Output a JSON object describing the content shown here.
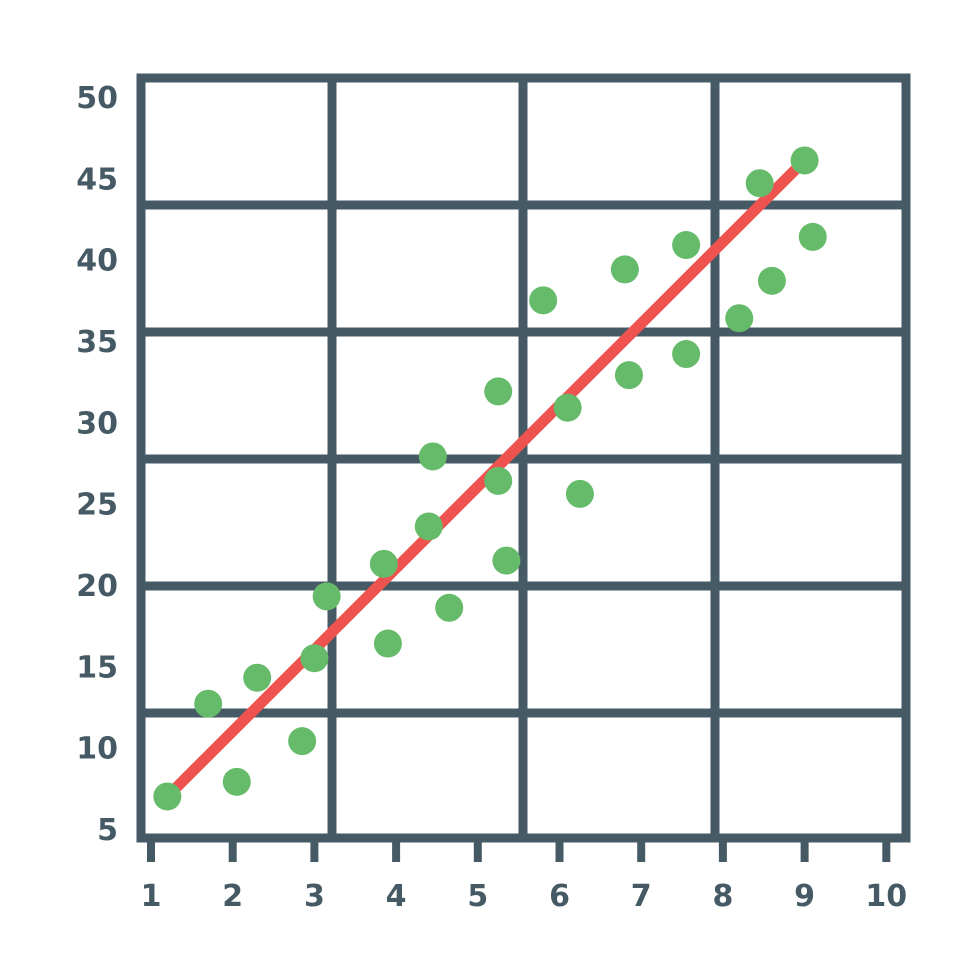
{
  "colors": {
    "grid": "#455a64",
    "points": "#66bb6a",
    "trendline": "#ef5350",
    "labels": "#455a64"
  },
  "chart_data": {
    "type": "scatter",
    "title": "",
    "xlabel": "",
    "ylabel": "",
    "xlim": [
      1,
      10
    ],
    "ylim": [
      5,
      50
    ],
    "grid": true,
    "x_ticks": [
      "1",
      "2",
      "3",
      "4",
      "5",
      "6",
      "7",
      "8",
      "9",
      "10"
    ],
    "y_ticks": [
      "5",
      "10",
      "15",
      "20",
      "25",
      "30",
      "35",
      "40",
      "45",
      "50"
    ],
    "points": [
      {
        "x": 1.2,
        "y": 7.0
      },
      {
        "x": 1.7,
        "y": 12.7
      },
      {
        "x": 2.05,
        "y": 7.9
      },
      {
        "x": 2.3,
        "y": 14.3
      },
      {
        "x": 2.85,
        "y": 10.4
      },
      {
        "x": 3.0,
        "y": 15.5
      },
      {
        "x": 3.15,
        "y": 19.3
      },
      {
        "x": 3.85,
        "y": 21.3
      },
      {
        "x": 3.9,
        "y": 16.4
      },
      {
        "x": 4.4,
        "y": 23.6
      },
      {
        "x": 4.45,
        "y": 27.9
      },
      {
        "x": 4.65,
        "y": 18.6
      },
      {
        "x": 5.25,
        "y": 31.9
      },
      {
        "x": 5.25,
        "y": 26.4
      },
      {
        "x": 5.35,
        "y": 21.5
      },
      {
        "x": 5.8,
        "y": 37.5
      },
      {
        "x": 6.1,
        "y": 30.9
      },
      {
        "x": 6.25,
        "y": 25.6
      },
      {
        "x": 6.8,
        "y": 39.4
      },
      {
        "x": 6.85,
        "y": 32.9
      },
      {
        "x": 7.55,
        "y": 40.9
      },
      {
        "x": 7.55,
        "y": 34.2
      },
      {
        "x": 8.2,
        "y": 36.4
      },
      {
        "x": 8.45,
        "y": 44.7
      },
      {
        "x": 8.6,
        "y": 38.7
      },
      {
        "x": 9.0,
        "y": 46.1
      },
      {
        "x": 9.1,
        "y": 41.4
      }
    ],
    "trendline": {
      "x": [
        1.2,
        9.0
      ],
      "y": [
        7.0,
        46.1
      ]
    }
  }
}
